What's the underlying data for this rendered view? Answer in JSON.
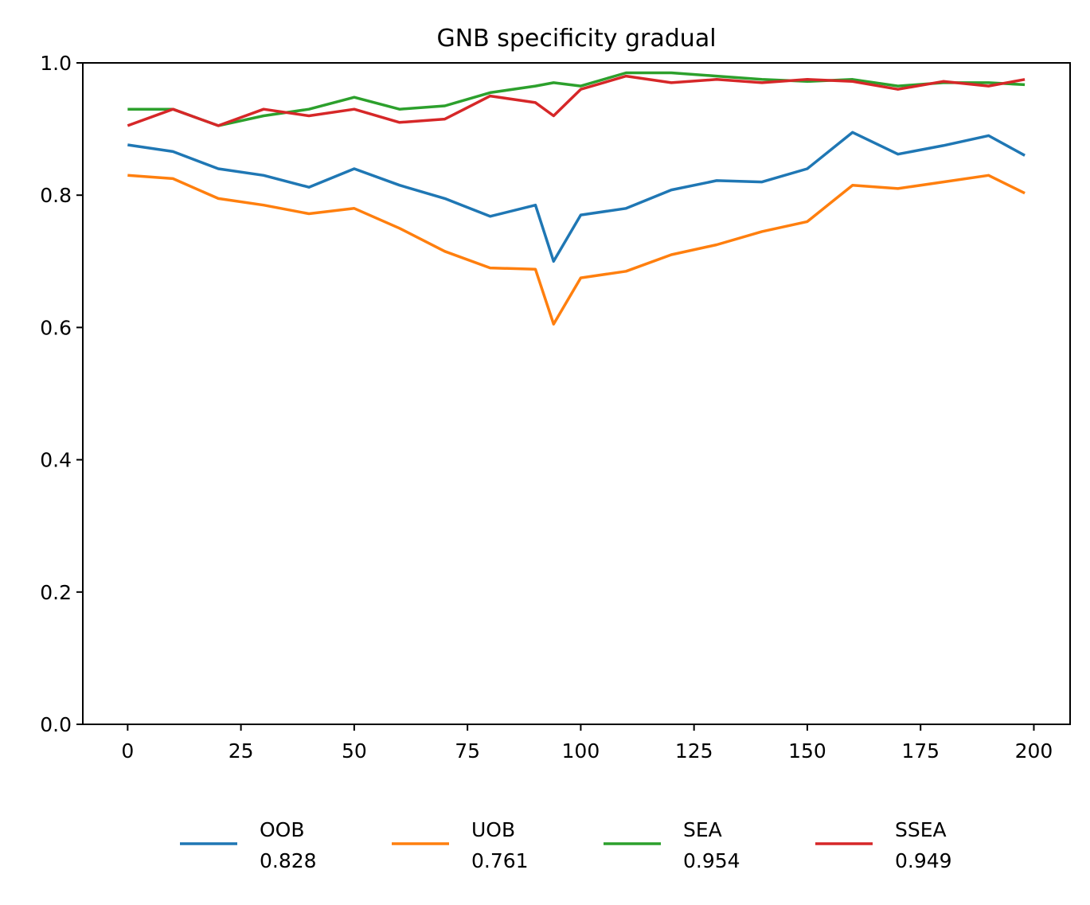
{
  "chart_data": {
    "type": "line",
    "title": "GNB specificity gradual",
    "xlabel": "",
    "ylabel": "",
    "xlim": [
      -9.9,
      208
    ],
    "ylim": [
      0.0,
      1.0
    ],
    "xticks": [
      0,
      25,
      50,
      75,
      100,
      125,
      150,
      175,
      200
    ],
    "yticks": [
      0.0,
      0.2,
      0.4,
      0.6,
      0.8,
      1.0
    ],
    "xtick_labels": [
      "0",
      "25",
      "50",
      "75",
      "100",
      "125",
      "150",
      "175",
      "200"
    ],
    "ytick_labels": [
      "0.0",
      "0.2",
      "0.4",
      "0.6",
      "0.8",
      "1.0"
    ],
    "grid": false,
    "legend_position": "bottom-center",
    "x": [
      0,
      10,
      20,
      30,
      40,
      50,
      60,
      70,
      80,
      90,
      94,
      100,
      110,
      120,
      130,
      140,
      150,
      160,
      170,
      180,
      190,
      198
    ],
    "series": [
      {
        "name": "OOB",
        "legend_value": "0.828",
        "color": "#1f77b4",
        "values": [
          0.876,
          0.866,
          0.84,
          0.83,
          0.812,
          0.84,
          0.815,
          0.795,
          0.768,
          0.785,
          0.7,
          0.77,
          0.78,
          0.808,
          0.822,
          0.82,
          0.84,
          0.895,
          0.862,
          0.875,
          0.89,
          0.86
        ]
      },
      {
        "name": "UOB",
        "legend_value": "0.761",
        "color": "#ff7f0e",
        "values": [
          0.83,
          0.825,
          0.795,
          0.785,
          0.772,
          0.78,
          0.75,
          0.715,
          0.69,
          0.688,
          0.605,
          0.675,
          0.685,
          0.71,
          0.725,
          0.745,
          0.76,
          0.815,
          0.81,
          0.82,
          0.83,
          0.803
        ]
      },
      {
        "name": "SEA",
        "legend_value": "0.954",
        "color": "#2ca02c",
        "values": [
          0.93,
          0.93,
          0.905,
          0.92,
          0.93,
          0.948,
          0.93,
          0.935,
          0.955,
          0.965,
          0.97,
          0.965,
          0.985,
          0.985,
          0.98,
          0.975,
          0.972,
          0.975,
          0.965,
          0.97,
          0.97,
          0.967
        ]
      },
      {
        "name": "SSEA",
        "legend_value": "0.949",
        "color": "#d62728",
        "values": [
          0.905,
          0.93,
          0.905,
          0.93,
          0.92,
          0.93,
          0.91,
          0.915,
          0.95,
          0.94,
          0.92,
          0.96,
          0.98,
          0.97,
          0.975,
          0.97,
          0.975,
          0.972,
          0.96,
          0.972,
          0.965,
          0.975
        ]
      }
    ]
  }
}
